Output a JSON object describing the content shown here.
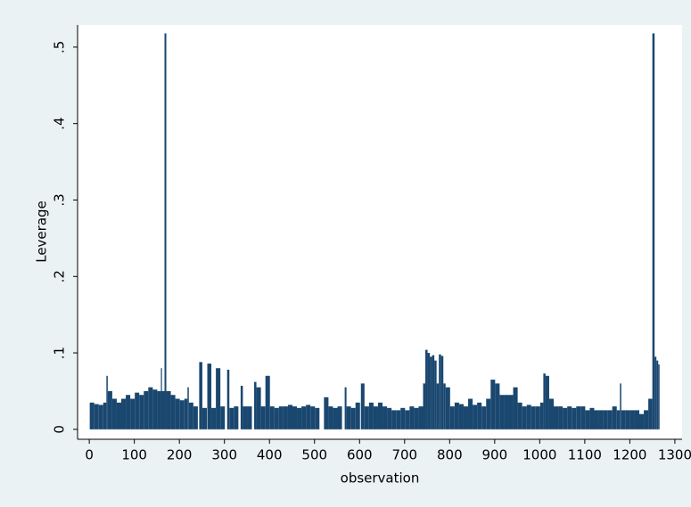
{
  "chart_data": {
    "type": "spike",
    "x_label": "observation",
    "y_label": "Leverage",
    "color": "#1a476f",
    "xlim": [
      -26,
      1316
    ],
    "ylim": [
      -0.013,
      0.529
    ],
    "xticks": [
      0,
      100,
      200,
      300,
      400,
      500,
      600,
      700,
      800,
      900,
      1000,
      1100,
      1200,
      1300
    ],
    "yticks": [
      0,
      {
        "value": 0.1,
        "label": ".1"
      },
      {
        "value": 0.2,
        "label": ".2"
      },
      {
        "value": 0.3,
        "label": ".3"
      },
      {
        "value": 0.4,
        "label": ".4"
      },
      {
        "value": 0.5,
        "label": ".5"
      }
    ],
    "x": [
      1,
      11,
      21,
      31,
      38,
      41,
      51,
      61,
      71,
      81,
      91,
      101,
      111,
      121,
      131,
      141,
      151,
      159,
      161,
      167,
      171,
      181,
      191,
      201,
      211,
      218,
      221,
      231,
      244,
      251,
      262,
      271,
      281,
      291,
      306,
      311,
      321,
      336,
      341,
      351,
      366,
      371,
      381,
      391,
      401,
      411,
      421,
      431,
      441,
      451,
      461,
      471,
      481,
      491,
      501,
      521,
      531,
      541,
      551,
      567,
      571,
      581,
      591,
      603,
      611,
      621,
      631,
      641,
      651,
      661,
      671,
      681,
      691,
      701,
      711,
      721,
      731,
      741,
      746,
      751,
      756,
      761,
      766,
      771,
      776,
      781,
      786,
      791,
      801,
      811,
      821,
      831,
      841,
      851,
      861,
      871,
      881,
      891,
      901,
      911,
      921,
      931,
      941,
      951,
      961,
      971,
      981,
      991,
      1001,
      1008,
      1013,
      1021,
      1031,
      1041,
      1051,
      1061,
      1071,
      1081,
      1091,
      1101,
      1111,
      1121,
      1131,
      1141,
      1151,
      1161,
      1171,
      1178,
      1181,
      1191,
      1201,
      1211,
      1221,
      1231,
      1241,
      1250,
      1255,
      1259,
      1263
    ],
    "values": [
      0.035,
      0.033,
      0.032,
      0.035,
      0.07,
      0.05,
      0.04,
      0.035,
      0.04,
      0.045,
      0.04,
      0.048,
      0.045,
      0.05,
      0.055,
      0.052,
      0.05,
      0.08,
      0.05,
      0.518,
      0.05,
      0.045,
      0.04,
      0.038,
      0.04,
      0.055,
      0.035,
      0.03,
      0.088,
      0.028,
      0.086,
      0.028,
      0.08,
      0.03,
      0.078,
      0.028,
      0.03,
      0.057,
      0.03,
      0.03,
      0.062,
      0.055,
      0.03,
      0.07,
      0.03,
      0.028,
      0.03,
      0.03,
      0.032,
      0.03,
      0.028,
      0.03,
      0.032,
      0.03,
      0.028,
      0.042,
      0.03,
      0.028,
      0.03,
      0.055,
      0.03,
      0.028,
      0.035,
      0.06,
      0.03,
      0.035,
      0.03,
      0.035,
      0.03,
      0.028,
      0.025,
      0.025,
      0.028,
      0.025,
      0.03,
      0.028,
      0.03,
      0.06,
      0.104,
      0.1,
      0.095,
      0.097,
      0.09,
      0.06,
      0.098,
      0.096,
      0.06,
      0.055,
      0.03,
      0.035,
      0.033,
      0.03,
      0.04,
      0.032,
      0.035,
      0.03,
      0.04,
      0.065,
      0.06,
      0.045,
      0.045,
      0.045,
      0.055,
      0.035,
      0.03,
      0.032,
      0.03,
      0.03,
      0.035,
      0.073,
      0.07,
      0.04,
      0.03,
      0.03,
      0.028,
      0.03,
      0.028,
      0.03,
      0.03,
      0.025,
      0.028,
      0.025,
      0.025,
      0.025,
      0.025,
      0.03,
      0.025,
      0.06,
      0.025,
      0.025,
      0.025,
      0.025,
      0.02,
      0.025,
      0.04,
      0.518,
      0.095,
      0.09,
      0.085
    ]
  }
}
